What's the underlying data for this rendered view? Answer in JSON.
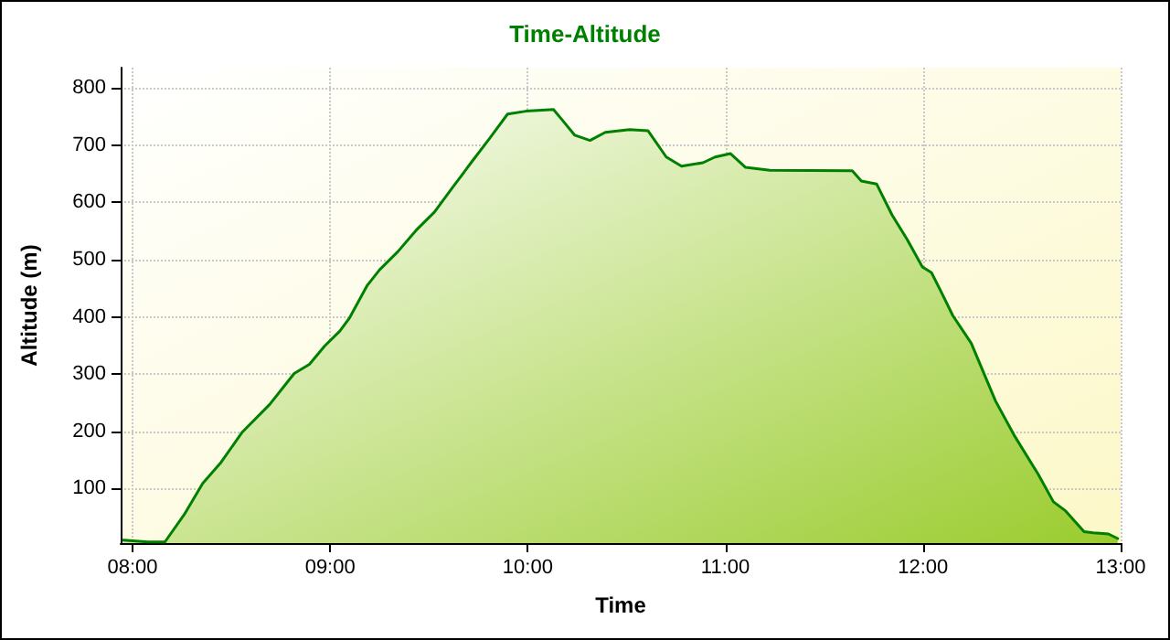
{
  "chart_data": {
    "type": "area",
    "title": "Time-Altitude",
    "xlabel": "Time",
    "ylabel": "Altitude (m)",
    "series": [
      {
        "color": "#008000",
        "x": [
          7.954,
          8.077,
          8.164,
          8.262,
          8.355,
          8.448,
          8.556,
          8.694,
          8.818,
          8.895,
          8.972,
          9.049,
          9.096,
          9.188,
          9.25,
          9.343,
          9.435,
          9.528,
          9.62,
          9.713,
          9.806,
          9.898,
          9.991,
          10.13,
          10.176,
          10.238,
          10.315,
          10.392,
          10.515,
          10.608,
          10.701,
          10.778,
          10.886,
          10.948,
          11.025,
          11.102,
          11.225,
          11.642,
          11.688,
          11.765,
          11.843,
          11.92,
          11.997,
          12.043,
          12.09,
          12.151,
          12.244,
          12.367,
          12.46,
          12.583,
          12.66,
          12.722,
          12.815,
          12.861,
          12.938,
          12.985
        ],
        "values": [
          10,
          7,
          7,
          55,
          109,
          146,
          199,
          247,
          301,
          317,
          349,
          375,
          397,
          455,
          482,
          514,
          551,
          583,
          626,
          669,
          711,
          754,
          759,
          762,
          743,
          717,
          708,
          722,
          727,
          725,
          679,
          663,
          669,
          679,
          685,
          661,
          656,
          655,
          637,
          632,
          578,
          535,
          487,
          477,
          445,
          402,
          354,
          253,
          194,
          125,
          77,
          61,
          25,
          23,
          21,
          13
        ]
      }
    ],
    "xlim": [
      7.94,
      13.0
    ],
    "xticks": [
      {
        "value": 8,
        "label": "08:00"
      },
      {
        "value": 9,
        "label": "09:00"
      },
      {
        "value": 10,
        "label": "10:00"
      },
      {
        "value": 11,
        "label": "11:00"
      },
      {
        "value": 12,
        "label": "12:00"
      },
      {
        "value": 13,
        "label": "13:00"
      }
    ],
    "ylim": [
      5,
      835
    ],
    "yticks": [
      100,
      200,
      300,
      400,
      500,
      600,
      700,
      800
    ],
    "grid": true,
    "marker": "none",
    "line_style": "solid"
  }
}
